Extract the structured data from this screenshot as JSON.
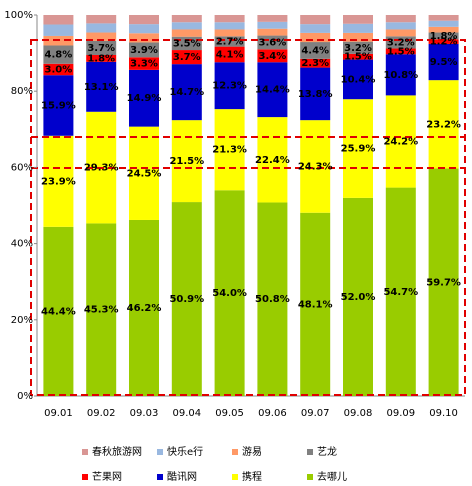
{
  "chart_data": {
    "type": "stacked_bar",
    "categories": [
      "09.01",
      "09.02",
      "09.03",
      "09.04",
      "09.05",
      "09.06",
      "09.07",
      "09.08",
      "09.09",
      "09.10"
    ],
    "ylim": [
      0,
      100
    ],
    "yticks": [
      {
        "value": 0,
        "label": "0%"
      },
      {
        "value": 20,
        "label": "20%"
      },
      {
        "value": 40,
        "label": "40%"
      },
      {
        "value": 60,
        "label": "60%"
      },
      {
        "value": 80,
        "label": "80%"
      },
      {
        "value": 100,
        "label": "100%"
      }
    ],
    "series": [
      {
        "name": "去哪儿",
        "color": "#99cc00",
        "values": [
          44.4,
          45.3,
          46.2,
          50.9,
          54.0,
          50.8,
          48.1,
          52.0,
          54.7,
          59.7
        ],
        "value_labels": [
          "44.4%",
          "45.3%",
          "46.2%",
          "50.9%",
          "54.0%",
          "50.8%",
          "48.1%",
          "52.0%",
          "54.7%",
          "59.7%"
        ]
      },
      {
        "name": "携程",
        "color": "#ffff00",
        "values": [
          23.9,
          29.3,
          24.5,
          21.5,
          21.3,
          22.4,
          24.3,
          25.9,
          24.2,
          23.2
        ],
        "value_labels": [
          "23.9%",
          "29.3%",
          "24.5%",
          "21.5%",
          "21.3%",
          "22.4%",
          "24.3%",
          "25.9%",
          "24.2%",
          "23.2%"
        ]
      },
      {
        "name": "酷讯网",
        "color": "#0000cc",
        "values": [
          15.9,
          13.1,
          14.9,
          14.7,
          12.3,
          14.4,
          13.8,
          10.4,
          10.8,
          9.5
        ],
        "value_labels": [
          "15.9%",
          "13.1%",
          "14.9%",
          "14.7%",
          "12.3%",
          "14.4%",
          "13.8%",
          "10.4%",
          "10.8%",
          "9.5%"
        ]
      },
      {
        "name": "芒果网",
        "color": "#ff0000",
        "values": [
          3.0,
          1.8,
          3.3,
          3.7,
          4.1,
          3.4,
          2.3,
          1.5,
          1.5,
          1.2
        ],
        "value_labels": [
          "3.0%",
          "1.8%",
          "3.3%",
          "3.7%",
          "4.1%",
          "3.4%",
          "2.3%",
          "1.5%",
          "1.5%",
          "1.2%"
        ]
      },
      {
        "name": "艺龙",
        "color": "#808080",
        "values": [
          4.8,
          3.7,
          3.9,
          3.5,
          2.7,
          3.6,
          4.4,
          3.2,
          3.2,
          1.8
        ],
        "value_labels": [
          "4.8%",
          "3.7%",
          "3.9%",
          "3.5%",
          "2.7%",
          "3.6%",
          "4.4%",
          "3.2%",
          "3.2%",
          "1.8%"
        ]
      },
      {
        "name": "游易",
        "color": "#ff9966",
        "values": [
          2.5,
          2.2,
          2.4,
          1.9,
          1.8,
          1.8,
          2.4,
          2.3,
          1.8,
          1.5
        ]
      },
      {
        "name": "快乐e行",
        "color": "#99b8e0",
        "values": [
          3.0,
          2.4,
          2.4,
          1.9,
          1.9,
          1.8,
          2.3,
          2.4,
          1.9,
          1.6
        ]
      },
      {
        "name": "春秋旅游网",
        "color": "#d99694",
        "values": [
          2.5,
          2.2,
          2.4,
          1.9,
          1.9,
          1.8,
          2.4,
          2.3,
          1.9,
          1.5
        ]
      }
    ]
  }
}
